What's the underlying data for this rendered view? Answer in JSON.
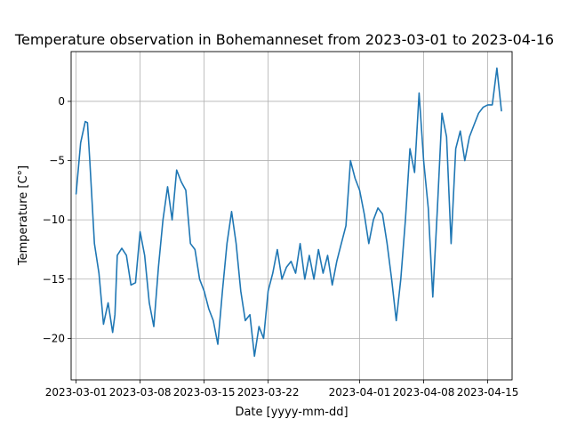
{
  "chart_data": {
    "type": "line",
    "title": "Temperature observation in Bohemanneset from 2023-03-01 to 2023-04-16",
    "xlabel": "Date [yyyy-mm-dd]",
    "ylabel": "Temperature [C°]",
    "x_range": [
      "2023-02-28 11:00",
      "2023-04-17 16:00"
    ],
    "ylim": [
      -23.5,
      4.2
    ],
    "x_ticks": [
      "2023-03-01",
      "2023-03-08",
      "2023-03-15",
      "2023-03-22",
      "2023-04-01",
      "2023-04-08",
      "2023-04-15"
    ],
    "y_ticks": [
      0,
      -5,
      -10,
      -15,
      -20
    ],
    "grid": true,
    "line_color": "#1f77b4",
    "series": [
      {
        "x": [
          "2023-03-01 00:00",
          "2023-03-01 12:00",
          "2023-03-02 00:00",
          "2023-03-02 06:00",
          "2023-03-02 12:00",
          "2023-03-03 00:00",
          "2023-03-03 12:00",
          "2023-03-04 00:00",
          "2023-03-04 12:00",
          "2023-03-05 00:00",
          "2023-03-05 06:00",
          "2023-03-05 12:00",
          "2023-03-06 00:00",
          "2023-03-06 12:00",
          "2023-03-07 00:00",
          "2023-03-07 12:00",
          "2023-03-08 00:00",
          "2023-03-08 12:00",
          "2023-03-09 00:00",
          "2023-03-09 12:00",
          "2023-03-10 00:00",
          "2023-03-10 12:00",
          "2023-03-11 00:00",
          "2023-03-11 12:00",
          "2023-03-12 00:00",
          "2023-03-12 12:00",
          "2023-03-13 00:00",
          "2023-03-13 12:00",
          "2023-03-14 00:00",
          "2023-03-14 12:00",
          "2023-03-15 00:00",
          "2023-03-15 12:00",
          "2023-03-16 00:00",
          "2023-03-16 12:00",
          "2023-03-17 00:00",
          "2023-03-17 12:00",
          "2023-03-18 00:00",
          "2023-03-18 12:00",
          "2023-03-19 00:00",
          "2023-03-19 12:00",
          "2023-03-20 00:00",
          "2023-03-20 12:00",
          "2023-03-21 00:00",
          "2023-03-21 12:00",
          "2023-03-22 00:00",
          "2023-03-22 12:00",
          "2023-03-23 00:00",
          "2023-03-23 12:00",
          "2023-03-24 00:00",
          "2023-03-24 12:00",
          "2023-03-25 00:00",
          "2023-03-25 12:00",
          "2023-03-26 00:00",
          "2023-03-26 12:00",
          "2023-03-27 00:00",
          "2023-03-27 12:00",
          "2023-03-28 00:00",
          "2023-03-28 12:00",
          "2023-03-29 00:00",
          "2023-03-29 12:00",
          "2023-03-30 00:00",
          "2023-03-30 12:00",
          "2023-03-31 00:00",
          "2023-03-31 12:00",
          "2023-04-01 00:00",
          "2023-04-01 12:00",
          "2023-04-02 00:00",
          "2023-04-02 12:00",
          "2023-04-03 00:00",
          "2023-04-03 12:00",
          "2023-04-04 00:00",
          "2023-04-04 12:00",
          "2023-04-05 00:00",
          "2023-04-05 12:00",
          "2023-04-06 00:00",
          "2023-04-06 12:00",
          "2023-04-07 00:00",
          "2023-04-07 12:00",
          "2023-04-08 00:00",
          "2023-04-08 12:00",
          "2023-04-09 00:00",
          "2023-04-09 12:00",
          "2023-04-10 00:00",
          "2023-04-10 12:00",
          "2023-04-11 00:00",
          "2023-04-11 12:00",
          "2023-04-12 00:00",
          "2023-04-12 12:00",
          "2023-04-13 00:00",
          "2023-04-13 12:00",
          "2023-04-14 00:00",
          "2023-04-14 12:00",
          "2023-04-15 00:00",
          "2023-04-15 12:00",
          "2023-04-16 00:00",
          "2023-04-16 12:00"
        ],
        "y": [
          -7.8,
          -3.5,
          -1.7,
          -1.8,
          -5.0,
          -12.0,
          -14.5,
          -18.8,
          -17.0,
          -19.5,
          -18.0,
          -13.0,
          -12.4,
          -13.0,
          -15.5,
          -15.3,
          -11.0,
          -13.0,
          -17.0,
          -19.0,
          -14.0,
          -10.0,
          -7.2,
          -10.0,
          -5.8,
          -6.8,
          -7.5,
          -12.0,
          -12.5,
          -15.0,
          -16.0,
          -17.5,
          -18.5,
          -20.5,
          -16.0,
          -12.0,
          -9.3,
          -12.0,
          -16.0,
          -18.5,
          -18.0,
          -21.5,
          -19.0,
          -20.0,
          -16.0,
          -14.5,
          -12.5,
          -15.0,
          -14.0,
          -13.5,
          -14.5,
          -12.0,
          -15.0,
          -13.0,
          -15.0,
          -12.5,
          -14.5,
          -13.0,
          -15.5,
          -13.5,
          -12.0,
          -10.5,
          -5.0,
          -6.5,
          -7.5,
          -9.5,
          -12.0,
          -10.0,
          -9.0,
          -9.5,
          -12.0,
          -15.0,
          -18.5,
          -15.0,
          -10.0,
          -4.0,
          -6.0,
          0.7,
          -5.0,
          -9.0,
          -16.5,
          -9.0,
          -1.0,
          -3.0,
          -12.0,
          -4.0,
          -2.5,
          -5.0,
          -3.0,
          -2.0,
          -1.0,
          -0.5,
          -0.3,
          -0.3,
          2.8,
          -0.8
        ]
      }
    ]
  }
}
